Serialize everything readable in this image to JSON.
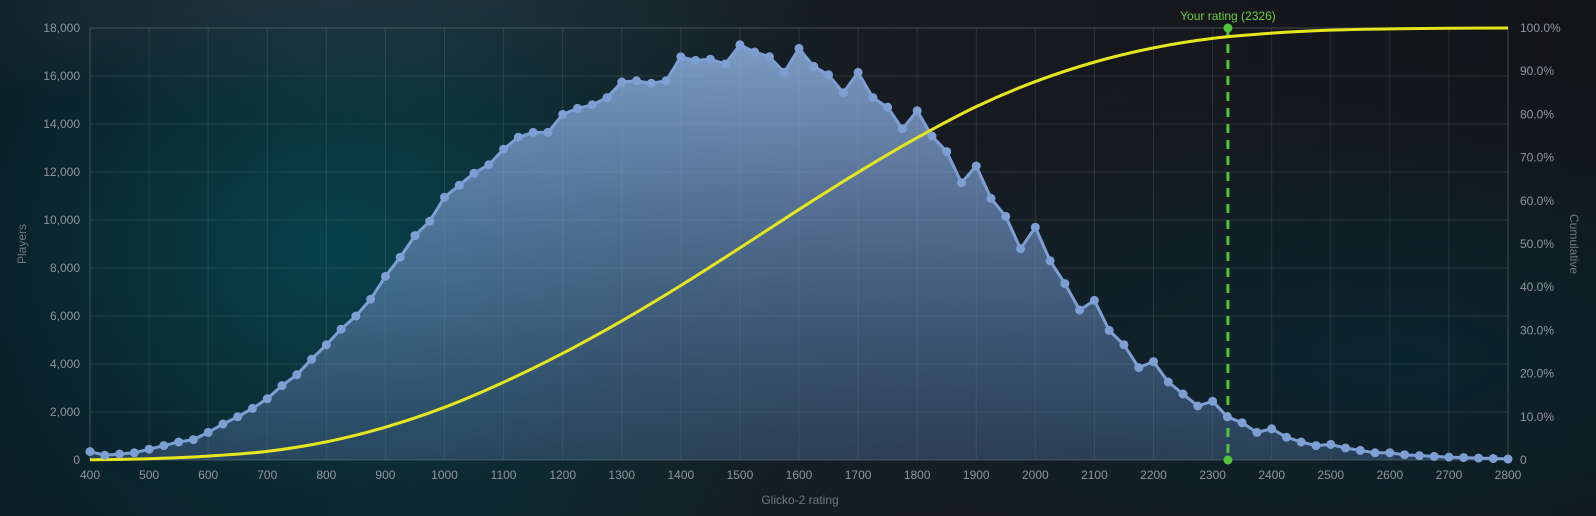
{
  "chart_data": {
    "type": "area",
    "x_axis": {
      "label": "Glicko-2 rating",
      "range": [
        400,
        2800
      ],
      "ticks": [
        400,
        500,
        600,
        700,
        800,
        900,
        1000,
        1100,
        1200,
        1300,
        1400,
        1500,
        1600,
        1700,
        1800,
        1900,
        2000,
        2100,
        2200,
        2300,
        2400,
        2500,
        2600,
        2700,
        2800
      ]
    },
    "y_axis_left": {
      "label": "Players",
      "range": [
        0,
        18000
      ],
      "ticks": [
        0,
        2000,
        4000,
        6000,
        8000,
        10000,
        12000,
        14000,
        16000,
        18000
      ],
      "tick_labels": [
        "0",
        "2,000",
        "4,000",
        "6,000",
        "8,000",
        "10,000",
        "12,000",
        "14,000",
        "16,000",
        "18,000"
      ]
    },
    "y_axis_right": {
      "label": "Cumulative",
      "range": [
        0,
        100
      ],
      "ticks": [
        0,
        10,
        20,
        30,
        40,
        50,
        60,
        70,
        80,
        90,
        100
      ],
      "tick_labels": [
        "0",
        "10.0%",
        "20.0%",
        "30.0%",
        "40.0%",
        "50.0%",
        "60.0%",
        "70.0%",
        "80.0%",
        "90.0%",
        "100.0%"
      ]
    },
    "grid": true,
    "series": [
      {
        "type": "area",
        "axis": "left",
        "color": "#7d9fd4",
        "x": [
          400,
          425,
          450,
          475,
          500,
          525,
          550,
          575,
          600,
          625,
          650,
          675,
          700,
          725,
          750,
          775,
          800,
          825,
          850,
          875,
          900,
          925,
          950,
          975,
          1000,
          1025,
          1050,
          1075,
          1100,
          1125,
          1150,
          1175,
          1200,
          1225,
          1250,
          1275,
          1300,
          1325,
          1350,
          1375,
          1400,
          1425,
          1450,
          1475,
          1500,
          1525,
          1550,
          1575,
          1600,
          1625,
          1650,
          1675,
          1700,
          1725,
          1750,
          1775,
          1800,
          1825,
          1850,
          1875,
          1900,
          1925,
          1950,
          1975,
          2000,
          2025,
          2050,
          2075,
          2100,
          2125,
          2150,
          2175,
          2200,
          2225,
          2250,
          2275,
          2300,
          2325,
          2350,
          2375,
          2400,
          2425,
          2450,
          2475,
          2500,
          2525,
          2550,
          2575,
          2600,
          2625,
          2650,
          2675,
          2700,
          2725,
          2750,
          2775,
          2800
        ],
        "values": [
          350,
          200,
          250,
          300,
          450,
          600,
          750,
          850,
          1150,
          1500,
          1800,
          2150,
          2550,
          3100,
          3550,
          4200,
          4800,
          5450,
          6000,
          6700,
          7650,
          8450,
          9350,
          9950,
          10950,
          11450,
          11950,
          12300,
          12950,
          13450,
          13650,
          13650,
          14400,
          14650,
          14800,
          15100,
          15750,
          15800,
          15700,
          15800,
          16800,
          16650,
          16700,
          16500,
          17300,
          17000,
          16800,
          16150,
          17150,
          16400,
          16050,
          15300,
          16150,
          15100,
          14700,
          13800,
          14550,
          13500,
          12850,
          11550,
          12250,
          10900,
          10150,
          8800,
          9700,
          8300,
          7350,
          6250,
          6650,
          5400,
          4800,
          3850,
          4100,
          3250,
          2750,
          2250,
          2450,
          1800,
          1550,
          1150,
          1300,
          950,
          750,
          600,
          650,
          500,
          400,
          300,
          300,
          220,
          180,
          150,
          120,
          100,
          80,
          60,
          40
        ]
      },
      {
        "type": "line",
        "axis": "right",
        "color": "#e5e61e",
        "x": [
          400,
          500,
          600,
          700,
          800,
          900,
          1000,
          1100,
          1200,
          1300,
          1400,
          1500,
          1600,
          1700,
          1800,
          1900,
          2000,
          2100,
          2200,
          2300,
          2400,
          2500,
          2600,
          2700,
          2800
        ],
        "values": [
          0.05,
          0.3,
          0.9,
          2.0,
          4.2,
          7.6,
          12.2,
          18.0,
          24.7,
          32.2,
          40.4,
          49.1,
          58.0,
          66.6,
          74.6,
          81.8,
          87.6,
          92.1,
          95.4,
          97.6,
          98.8,
          99.5,
          99.8,
          99.95,
          100.0
        ]
      }
    ],
    "marker": {
      "label": "Your rating (2326)",
      "x": 2326,
      "color": "#52c43c"
    }
  }
}
